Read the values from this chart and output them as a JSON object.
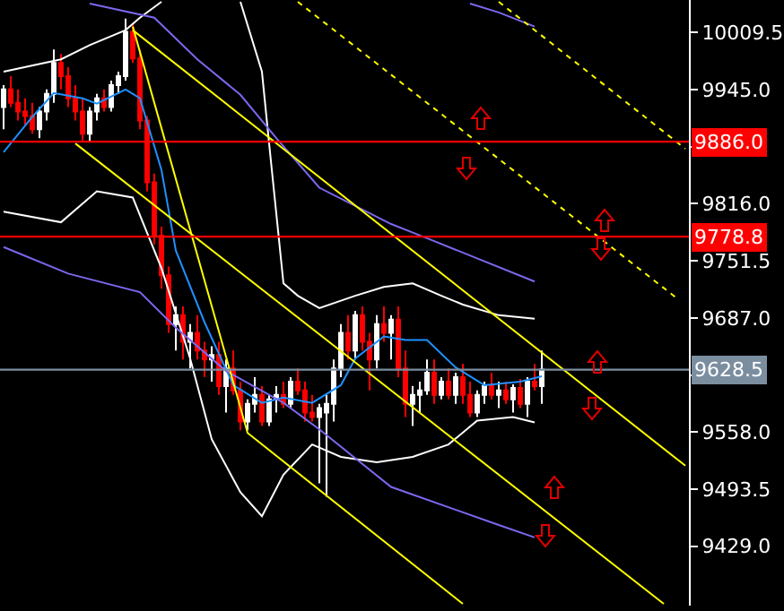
{
  "chart_data": {
    "type": "candlestick",
    "tick_labels": "y",
    "grid": false,
    "categories": [
      null,
      null,
      null,
      null,
      null,
      null,
      null,
      null,
      null,
      null,
      null,
      null,
      null,
      null,
      null,
      null,
      null,
      null,
      null,
      null,
      null,
      null,
      null,
      null,
      null,
      null,
      null,
      null,
      null,
      null,
      null,
      null,
      null,
      null,
      null,
      null,
      null,
      null,
      null,
      null,
      null,
      null,
      null,
      null,
      null,
      null,
      null,
      null,
      null,
      null,
      null,
      null,
      null,
      null,
      null,
      null,
      null,
      null,
      null,
      null,
      null,
      null,
      null,
      null,
      null,
      null,
      null,
      null,
      null,
      null,
      null,
      null,
      null,
      null,
      null,
      null,
      null,
      null,
      null,
      null,
      null,
      null,
      null,
      null,
      null,
      null,
      null,
      null,
      null,
      null,
      null,
      null,
      null,
      null,
      null,
      null
    ],
    "ohlc": [
      [
        9925,
        9950,
        9900,
        9945
      ],
      [
        9945,
        9960,
        9925,
        9930
      ],
      [
        9930,
        9945,
        9910,
        9920
      ],
      [
        9920,
        9935,
        9905,
        9915
      ],
      [
        9915,
        9930,
        9895,
        9900
      ],
      [
        9900,
        9925,
        9890,
        9920
      ],
      [
        9920,
        9945,
        9910,
        9940
      ],
      [
        9940,
        9990,
        9930,
        9975
      ],
      [
        9975,
        9985,
        9945,
        9960
      ],
      [
        9960,
        9970,
        9925,
        9935
      ],
      [
        9935,
        9950,
        9910,
        9920
      ],
      [
        9920,
        9935,
        9885,
        9895
      ],
      [
        9895,
        9925,
        9885,
        9920
      ],
      [
        9920,
        9940,
        9910,
        9935
      ],
      [
        9935,
        9945,
        9920,
        9925
      ],
      [
        9925,
        9955,
        9920,
        9950
      ],
      [
        9950,
        9965,
        9940,
        9960
      ],
      [
        9960,
        10025,
        9955,
        10010
      ],
      [
        10010,
        10020,
        9975,
        9980
      ],
      [
        9980,
        9990,
        9900,
        9910
      ],
      [
        9910,
        9915,
        9830,
        9840
      ],
      [
        9840,
        9850,
        9770,
        9780
      ],
      [
        9780,
        9790,
        9720,
        9735
      ],
      [
        9735,
        9745,
        9670,
        9680
      ],
      [
        9680,
        9700,
        9650,
        9690
      ],
      [
        9690,
        9700,
        9640,
        9660
      ],
      [
        9660,
        9680,
        9630,
        9670
      ],
      [
        9670,
        9690,
        9640,
        9650
      ],
      [
        9650,
        9660,
        9620,
        9640
      ],
      [
        9640,
        9655,
        9615,
        9645
      ],
      [
        9645,
        9660,
        9600,
        9610
      ],
      [
        9610,
        9640,
        9580,
        9630
      ],
      [
        9630,
        9650,
        9600,
        9605
      ],
      [
        9605,
        9615,
        9560,
        9570
      ],
      [
        9570,
        9595,
        9560,
        9590
      ],
      [
        9590,
        9620,
        9580,
        9600
      ],
      [
        9600,
        9610,
        9565,
        9570
      ],
      [
        9570,
        9600,
        9565,
        9595
      ],
      [
        9595,
        9610,
        9580,
        9600
      ],
      [
        9600,
        9615,
        9585,
        9590
      ],
      [
        9590,
        9620,
        9585,
        9615
      ],
      [
        9615,
        9630,
        9600,
        9605
      ],
      [
        9605,
        9615,
        9570,
        9580
      ],
      [
        9580,
        9600,
        9570,
        9575
      ],
      [
        9575,
        9590,
        9500,
        9585
      ],
      [
        9580,
        9600,
        9485,
        9590
      ],
      [
        9590,
        9640,
        9570,
        9630
      ],
      [
        9630,
        9680,
        9620,
        9670
      ],
      [
        9670,
        9690,
        9640,
        9650
      ],
      [
        9650,
        9695,
        9640,
        9690
      ],
      [
        9690,
        9700,
        9650,
        9660
      ],
      [
        9660,
        9670,
        9605,
        9640
      ],
      [
        9640,
        9690,
        9630,
        9680
      ],
      [
        9680,
        9700,
        9660,
        9670
      ],
      [
        9670,
        9690,
        9640,
        9685
      ],
      [
        9685,
        9700,
        9620,
        9630
      ],
      [
        9630,
        9650,
        9575,
        9590
      ],
      [
        9590,
        9610,
        9565,
        9600
      ],
      [
        9600,
        9615,
        9580,
        9605
      ],
      [
        9605,
        9640,
        9600,
        9625
      ],
      [
        9625,
        9640,
        9590,
        9600
      ],
      [
        9600,
        9620,
        9595,
        9615
      ],
      [
        9615,
        9630,
        9595,
        9600
      ],
      [
        9600,
        9625,
        9590,
        9620
      ],
      [
        9620,
        9635,
        9590,
        9600
      ],
      [
        9600,
        9615,
        9575,
        9580
      ],
      [
        9580,
        9605,
        9575,
        9600
      ],
      [
        9600,
        9615,
        9590,
        9610
      ],
      [
        9610,
        9625,
        9595,
        9600
      ],
      [
        9600,
        9615,
        9585,
        9605
      ],
      [
        9605,
        9615,
        9590,
        9595
      ],
      [
        9595,
        9612,
        9580,
        9608
      ],
      [
        9608,
        9618,
        9585,
        9590
      ],
      [
        9590,
        9620,
        9575,
        9615
      ],
      [
        9615,
        9635,
        9605,
        9610
      ],
      [
        9610,
        9650,
        9590,
        9628.5
      ],
      null,
      null,
      null,
      null,
      null,
      null,
      null,
      null,
      null,
      null,
      null,
      null,
      null,
      null,
      null,
      null,
      null,
      null,
      null,
      null
    ],
    "ylim": [
      9362,
      10046
    ],
    "yticks": [
      {
        "value": 10009.5,
        "label": "10009.5"
      },
      {
        "value": 9945,
        "label": "9945.0"
      },
      {
        "value": 9880.5,
        "label": null
      },
      {
        "value": 9816,
        "label": "9816.0"
      },
      {
        "value": 9751.5,
        "label": "9751.5"
      },
      {
        "value": 9687,
        "label": "9687.0"
      },
      {
        "value": 9622.5,
        "label": null
      },
      {
        "value": 9558,
        "label": "9558.0"
      },
      {
        "value": 9493.5,
        "label": "9493.5"
      },
      {
        "value": 9429,
        "label": "9429.0"
      }
    ],
    "series": [
      {
        "type": "line",
        "color": "#1e90ff",
        "line_style": "solid",
        "values": [
          9874,
          null,
          null,
          null,
          9914,
          null,
          null,
          9941,
          null,
          null,
          null,
          9935,
          null,
          9929,
          null,
          null,
          null,
          9945,
          null,
          9935,
          null,
          null,
          9854,
          null,
          9763,
          null,
          null,
          null,
          9682,
          null,
          null,
          null,
          9611,
          null,
          null,
          null,
          9591,
          null,
          null,
          9597,
          null,
          null,
          null,
          9591,
          null,
          null,
          null,
          9611,
          null,
          9641,
          null,
          null,
          null,
          9666,
          null,
          null,
          9662,
          null,
          null,
          9662,
          null,
          null,
          null,
          9631,
          null,
          null,
          null,
          9611,
          null,
          null,
          null,
          null,
          9615,
          null,
          null,
          9621,
          null,
          null,
          null,
          null,
          null,
          null,
          null,
          null,
          null,
          null,
          null,
          null,
          null,
          null,
          null,
          null,
          null,
          null,
          null,
          null
        ]
      },
      {
        "type": "line",
        "color": "#ffffff",
        "line_style": "solid",
        "values": [
          9965,
          null,
          null,
          null,
          null,
          null,
          null,
          null,
          9979,
          null,
          null,
          null,
          9995,
          null,
          null,
          null,
          null,
          10012,
          null,
          10026,
          null,
          null,
          10044,
          null,
          null,
          null,
          null,
          null,
          null,
          null,
          null,
          null,
          null,
          null,
          null,
          null,
          null,
          null,
          null,
          null,
          null,
          null,
          null,
          null,
          null,
          null,
          null,
          null,
          null,
          null,
          null,
          null,
          null,
          null,
          null,
          null,
          null,
          null,
          null,
          null,
          null,
          null,
          null,
          null,
          null,
          null,
          null,
          null,
          null,
          null,
          null,
          null,
          null,
          null,
          null,
          null,
          null,
          null,
          null,
          null,
          null,
          null,
          null,
          null,
          null,
          null,
          null,
          null,
          null,
          null,
          null,
          null,
          null,
          null,
          null,
          null
        ]
      },
      {
        "type": "line",
        "color": "#ffffff",
        "line_style": "solid",
        "values": [
          null,
          null,
          null,
          null,
          null,
          null,
          null,
          null,
          null,
          null,
          null,
          null,
          null,
          null,
          null,
          null,
          null,
          null,
          null,
          null,
          null,
          null,
          null,
          null,
          null,
          null,
          null,
          null,
          null,
          null,
          null,
          null,
          null,
          10044,
          null,
          null,
          9965,
          9884,
          null,
          9726,
          null,
          9712,
          null,
          null,
          9698,
          null,
          null,
          null,
          null,
          9712,
          null,
          null,
          null,
          9722,
          null,
          null,
          null,
          9726,
          null,
          null,
          null,
          9712,
          null,
          null,
          9702,
          null,
          null,
          null,
          null,
          9690,
          null,
          null,
          null,
          null,
          9686,
          null,
          null,
          null,
          null,
          null,
          null,
          null,
          null,
          null,
          null,
          null,
          null,
          null,
          null,
          null,
          null,
          null,
          null,
          null,
          null,
          null
        ]
      },
      {
        "type": "line",
        "color": "#ffffff",
        "line_style": "solid",
        "values": [
          9807,
          null,
          null,
          null,
          null,
          null,
          null,
          null,
          9795,
          null,
          null,
          null,
          null,
          9830,
          null,
          null,
          null,
          null,
          9823,
          null,
          null,
          null,
          9743,
          null,
          null,
          null,
          9641,
          null,
          null,
          9550,
          null,
          null,
          null,
          9490,
          null,
          null,
          9463,
          null,
          null,
          9510,
          null,
          null,
          null,
          9544,
          null,
          null,
          null,
          9530,
          null,
          null,
          null,
          null,
          9524,
          null,
          null,
          null,
          null,
          9530,
          null,
          null,
          null,
          null,
          9544,
          null,
          null,
          null,
          9571,
          null,
          null,
          null,
          null,
          9575,
          null,
          null,
          9569,
          null,
          null,
          null,
          null,
          null,
          null,
          null,
          null,
          null,
          null,
          null,
          null,
          null,
          null,
          null,
          null,
          null,
          null,
          null,
          null,
          null
        ]
      },
      {
        "type": "line",
        "color": "#7b68ee",
        "line_style": "solid",
        "values": [
          9767,
          null,
          null,
          null,
          null,
          null,
          null,
          null,
          null,
          9737,
          null,
          null,
          null,
          null,
          null,
          null,
          null,
          null,
          null,
          9716,
          null,
          null,
          null,
          null,
          9676,
          null,
          null,
          null,
          null,
          null,
          null,
          9627,
          null,
          null,
          null,
          null,
          null,
          null,
          null,
          9591,
          null,
          null,
          null,
          null,
          9561,
          null,
          null,
          null,
          null,
          null,
          null,
          null,
          null,
          null,
          9496,
          null,
          null,
          null,
          null,
          null,
          null,
          null,
          null,
          null,
          null,
          null,
          null,
          null,
          null,
          9453,
          null,
          null,
          null,
          null,
          9439,
          null,
          null,
          null,
          null,
          null,
          null,
          null,
          null,
          null,
          null,
          null,
          null,
          null,
          null,
          null,
          null,
          null,
          null,
          null,
          null,
          null
        ]
      },
      {
        "type": "line",
        "color": "#7b68ee",
        "line_style": "solid",
        "values": [
          null,
          null,
          null,
          null,
          null,
          null,
          null,
          null,
          null,
          null,
          null,
          null,
          10042,
          null,
          null,
          null,
          null,
          null,
          null,
          null,
          null,
          10026,
          null,
          null,
          null,
          null,
          null,
          9979,
          null,
          null,
          null,
          null,
          null,
          9939,
          null,
          null,
          null,
          null,
          9890,
          null,
          null,
          null,
          null,
          null,
          9834,
          null,
          null,
          null,
          null,
          null,
          null,
          null,
          null,
          null,
          9793,
          null,
          null,
          null,
          null,
          9777,
          null,
          null,
          null,
          null,
          null,
          null,
          null,
          null,
          null,
          null,
          null,
          null,
          null,
          null,
          9728,
          null,
          null,
          null,
          null,
          null,
          null,
          null,
          null,
          null,
          null,
          null,
          null,
          null,
          null,
          null,
          null,
          null,
          null,
          null,
          null,
          null
        ]
      },
      {
        "type": "line",
        "color": "#7b68ee",
        "line_style": "solid",
        "values": [
          null,
          null,
          null,
          null,
          null,
          null,
          null,
          null,
          null,
          null,
          null,
          null,
          null,
          null,
          null,
          null,
          null,
          null,
          null,
          null,
          null,
          null,
          null,
          null,
          null,
          null,
          null,
          null,
          null,
          null,
          null,
          null,
          null,
          null,
          null,
          null,
          null,
          null,
          null,
          null,
          null,
          null,
          null,
          null,
          null,
          null,
          null,
          null,
          null,
          null,
          null,
          null,
          null,
          null,
          null,
          null,
          null,
          null,
          null,
          null,
          null,
          null,
          null,
          null,
          null,
          10042,
          null,
          null,
          null,
          10032,
          null,
          null,
          null,
          null,
          10016,
          null,
          null,
          null,
          null,
          null,
          null,
          null,
          null,
          null,
          null,
          null,
          null,
          null,
          null,
          null,
          null,
          null,
          null,
          null,
          null,
          null
        ]
      },
      {
        "type": "line",
        "color": "#ffff00",
        "line_style": "solid",
        "values": [
          null,
          null,
          null,
          null,
          null,
          null,
          null,
          null,
          null,
          null,
          null,
          null,
          null,
          null,
          null,
          null,
          null,
          null,
          10016,
          null,
          null,
          null,
          null,
          null,
          null,
          null,
          null,
          null,
          null,
          null,
          null,
          null,
          null,
          null,
          9557,
          null,
          null,
          null,
          null,
          null,
          null,
          null,
          null,
          null,
          null,
          null,
          null,
          null,
          null,
          null,
          null,
          null,
          null,
          null,
          null,
          null,
          null,
          null,
          null,
          null,
          null,
          null,
          null,
          null,
          9364,
          null,
          null,
          null,
          null,
          null,
          null,
          null,
          null,
          null,
          null,
          null,
          null,
          null,
          null,
          null,
          null,
          null,
          null,
          null,
          null,
          null,
          null,
          null,
          null,
          null,
          null,
          null,
          null,
          null,
          null,
          null
        ]
      },
      {
        "type": "line",
        "color": "#ffff00",
        "line_style": "solid",
        "values": [
          null,
          null,
          null,
          null,
          null,
          null,
          null,
          null,
          null,
          null,
          null,
          null,
          null,
          null,
          null,
          null,
          null,
          null,
          10012,
          null,
          null,
          null,
          null,
          null,
          null,
          null,
          null,
          null,
          null,
          null,
          null,
          null,
          null,
          null,
          null,
          null,
          null,
          null,
          null,
          null,
          null,
          null,
          null,
          null,
          null,
          null,
          null,
          null,
          null,
          null,
          null,
          null,
          null,
          null,
          null,
          null,
          null,
          null,
          null,
          null,
          null,
          null,
          null,
          null,
          null,
          null,
          null,
          null,
          null,
          null,
          null,
          null,
          null,
          null,
          null,
          null,
          null,
          null,
          null,
          null,
          null,
          null,
          null,
          null,
          null,
          null,
          null,
          null,
          null,
          null,
          null,
          null,
          null,
          null,
          null,
          9520
        ]
      },
      {
        "type": "line",
        "color": "#ffff00",
        "line_style": "solid",
        "values": [
          null,
          null,
          null,
          null,
          null,
          null,
          null,
          null,
          null,
          null,
          9884,
          null,
          null,
          null,
          null,
          null,
          null,
          null,
          null,
          null,
          null,
          null,
          null,
          null,
          null,
          null,
          null,
          null,
          null,
          null,
          null,
          null,
          null,
          null,
          null,
          null,
          null,
          null,
          null,
          null,
          null,
          null,
          null,
          null,
          null,
          null,
          null,
          null,
          null,
          null,
          null,
          null,
          null,
          null,
          null,
          null,
          null,
          null,
          null,
          null,
          null,
          null,
          null,
          null,
          null,
          null,
          null,
          null,
          null,
          null,
          null,
          null,
          null,
          null,
          null,
          null,
          null,
          null,
          null,
          null,
          null,
          null,
          null,
          null,
          null,
          null,
          null,
          null,
          null,
          null,
          null,
          null,
          9364,
          null,
          null,
          null
        ]
      },
      {
        "type": "line",
        "color": "#ffff00",
        "line_style": "dotted",
        "values": [
          null,
          null,
          null,
          null,
          null,
          null,
          null,
          null,
          null,
          null,
          null,
          null,
          null,
          null,
          null,
          null,
          null,
          null,
          null,
          null,
          null,
          null,
          null,
          null,
          null,
          null,
          null,
          null,
          null,
          null,
          null,
          null,
          null,
          null,
          null,
          null,
          null,
          null,
          null,
          null,
          null,
          10044,
          null,
          null,
          null,
          null,
          null,
          null,
          null,
          null,
          null,
          null,
          null,
          null,
          null,
          null,
          null,
          null,
          null,
          null,
          null,
          null,
          null,
          null,
          null,
          null,
          null,
          null,
          null,
          null,
          null,
          null,
          null,
          null,
          null,
          null,
          null,
          null,
          null,
          null,
          null,
          null,
          null,
          null,
          null,
          null,
          null,
          null,
          null,
          null,
          null,
          null,
          null,
          null,
          9708,
          null
        ]
      },
      {
        "type": "line",
        "color": "#ffff00",
        "line_style": "dotted",
        "values": [
          null,
          null,
          null,
          null,
          null,
          null,
          null,
          null,
          null,
          null,
          null,
          null,
          null,
          null,
          null,
          null,
          null,
          null,
          null,
          null,
          null,
          null,
          null,
          null,
          null,
          null,
          null,
          null,
          null,
          null,
          null,
          null,
          null,
          null,
          null,
          null,
          null,
          null,
          null,
          null,
          null,
          null,
          null,
          null,
          null,
          null,
          null,
          null,
          null,
          null,
          null,
          null,
          null,
          null,
          null,
          null,
          null,
          null,
          null,
          null,
          null,
          null,
          null,
          null,
          null,
          null,
          null,
          null,
          null,
          10044,
          null,
          null,
          null,
          null,
          null,
          null,
          null,
          null,
          null,
          null,
          null,
          null,
          null,
          null,
          null,
          null,
          null,
          null,
          null,
          null,
          null,
          null,
          null,
          null,
          null,
          9878
        ]
      }
    ],
    "ref_lines": [
      {
        "axis": "y",
        "value": 9886.0,
        "label": "9886.0",
        "color": "#ff0000"
      },
      {
        "axis": "y",
        "value": 9778.8,
        "label": "9778.8",
        "color": "#ff0000"
      },
      {
        "axis": "y",
        "value": 9628.5,
        "label": "9628.5",
        "color": "#7b8ea0"
      }
    ]
  }
}
